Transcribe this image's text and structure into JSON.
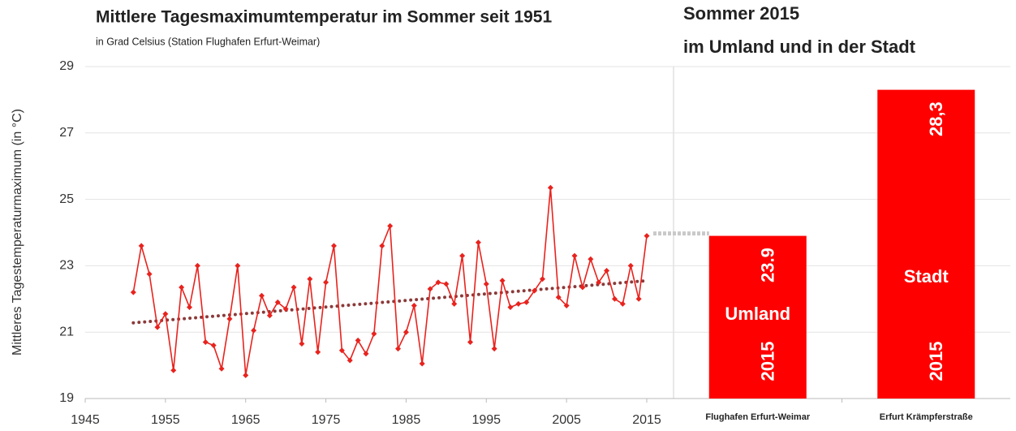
{
  "chart_data": [
    {
      "type": "line",
      "title": "Mittlere Tagesmaximumtemperatur im Sommer seit 1951",
      "subtitle": "in Grad Celsius (Station Flughafen Erfurt-Weimar)",
      "y_label": "Mittleres Tagestemperaturmaximum (in °C)",
      "x": [
        1951,
        1952,
        1953,
        1954,
        1955,
        1956,
        1957,
        1958,
        1959,
        1960,
        1961,
        1962,
        1963,
        1964,
        1965,
        1966,
        1967,
        1968,
        1969,
        1970,
        1971,
        1972,
        1973,
        1974,
        1975,
        1976,
        1977,
        1978,
        1979,
        1980,
        1981,
        1982,
        1983,
        1984,
        1985,
        1986,
        1987,
        1988,
        1989,
        1990,
        1991,
        1992,
        1993,
        1994,
        1995,
        1996,
        1997,
        1998,
        1999,
        2000,
        2001,
        2002,
        2003,
        2004,
        2005,
        2006,
        2007,
        2008,
        2009,
        2010,
        2011,
        2012,
        2013,
        2014,
        2015
      ],
      "series": [
        {
          "color": "#e8231e",
          "values": [
            22.2,
            23.6,
            22.75,
            21.15,
            21.55,
            19.85,
            22.35,
            21.75,
            23.0,
            20.7,
            20.6,
            19.9,
            21.4,
            23.0,
            19.7,
            21.05,
            22.1,
            21.5,
            21.9,
            21.7,
            22.35,
            20.65,
            22.6,
            20.4,
            22.5,
            23.6,
            20.45,
            20.15,
            20.75,
            20.35,
            20.95,
            23.6,
            24.2,
            20.5,
            21.0,
            21.8,
            20.05,
            22.3,
            22.5,
            22.45,
            21.85,
            23.3,
            20.7,
            23.7,
            22.45,
            20.5,
            22.55,
            21.75,
            21.85,
            21.9,
            22.25,
            22.6,
            25.35,
            22.05,
            21.8,
            23.3,
            22.35,
            23.2,
            22.5,
            22.85,
            22.0,
            21.85,
            23.0,
            22.0,
            23.9
          ]
        }
      ],
      "trend": {
        "color": "#8b3a3a",
        "x": [
          1951,
          2015
        ],
        "values": [
          21.28,
          22.55
        ]
      },
      "xlim": [
        1945,
        2015
      ],
      "xticks": [
        1945,
        1955,
        1965,
        1975,
        1985,
        1995,
        2005,
        2015
      ],
      "ylim": [
        19,
        29
      ],
      "yticks": [
        19,
        21,
        23,
        25,
        27,
        29
      ],
      "grid": true
    },
    {
      "type": "bar",
      "title_lines": [
        "Sommer 2015",
        "im Umland und in der Stadt"
      ],
      "categories": [
        "Flughafen Erfurt-Weimar",
        "Erfurt Krämpferstraße"
      ],
      "values": [
        23.9,
        28.3
      ],
      "value_labels": [
        "23.9",
        "28,3"
      ],
      "bar_texts": [
        "Umland",
        "Stadt"
      ],
      "year_labels": [
        "2015",
        "2015"
      ],
      "color": "#ff0000",
      "ylim": [
        19,
        29
      ],
      "yticks": [
        19,
        21,
        23,
        25,
        27,
        29
      ],
      "grid": true
    }
  ]
}
